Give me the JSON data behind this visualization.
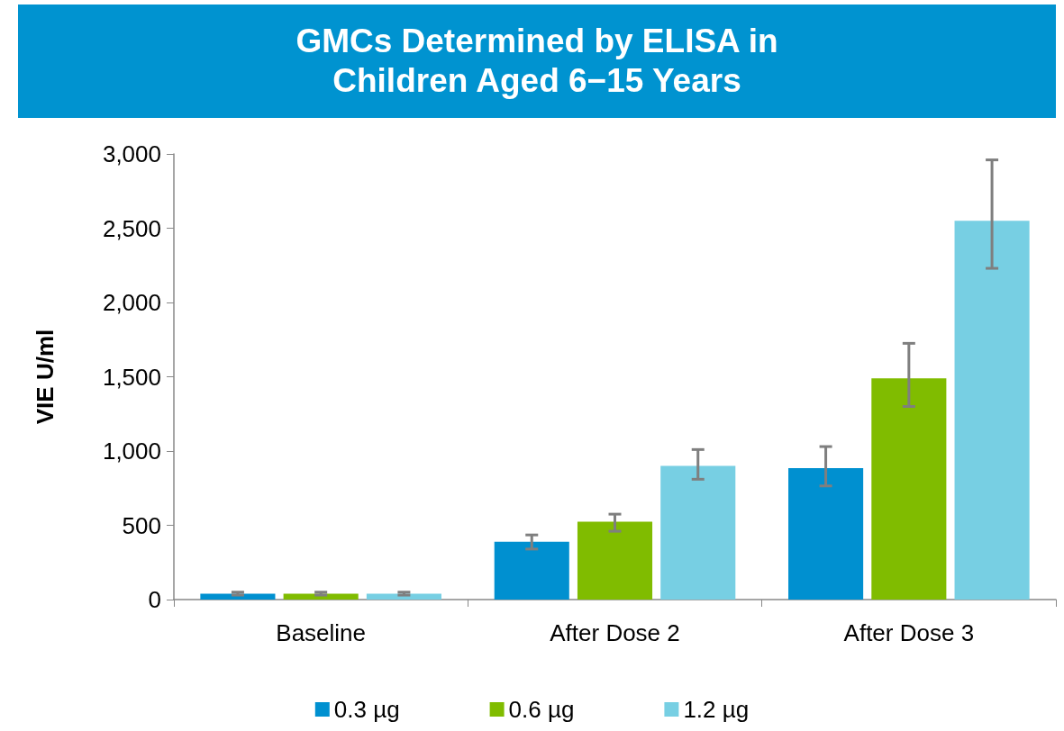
{
  "chart_data": {
    "type": "bar",
    "title": "GMCs Determined by ELISA in\nChildren Aged 6−15 Years",
    "ylabel": "VIE U/ml",
    "categories": [
      "Baseline",
      "After Dose 2",
      "After Dose 3"
    ],
    "series": [
      {
        "name": "0.3 µg",
        "color": "#0090d0",
        "values": [
          40,
          390,
          885
        ],
        "errors": [
          [
            30,
            50
          ],
          [
            340,
            435
          ],
          [
            765,
            1030
          ]
        ]
      },
      {
        "name": "0.6 µg",
        "color": "#80bc00",
        "values": [
          40,
          525,
          1490
        ],
        "errors": [
          [
            30,
            50
          ],
          [
            460,
            575
          ],
          [
            1300,
            1725
          ]
        ]
      },
      {
        "name": "1.2 µg",
        "color": "#77cfe3",
        "values": [
          40,
          900,
          2550
        ],
        "errors": [
          [
            30,
            50
          ],
          [
            810,
            1010
          ],
          [
            2230,
            2960
          ]
        ]
      }
    ],
    "ylim": [
      0,
      3000
    ],
    "yticks": [
      0,
      500,
      {
        "value": 1000,
        "label": "1,000"
      },
      {
        "value": 1500,
        "label": "1,500"
      },
      {
        "value": 2000,
        "label": "2,000"
      },
      {
        "value": 2500,
        "label": "2,500"
      },
      {
        "value": 3000,
        "label": "3,000"
      }
    ],
    "grid": false,
    "legend": "bottom"
  }
}
